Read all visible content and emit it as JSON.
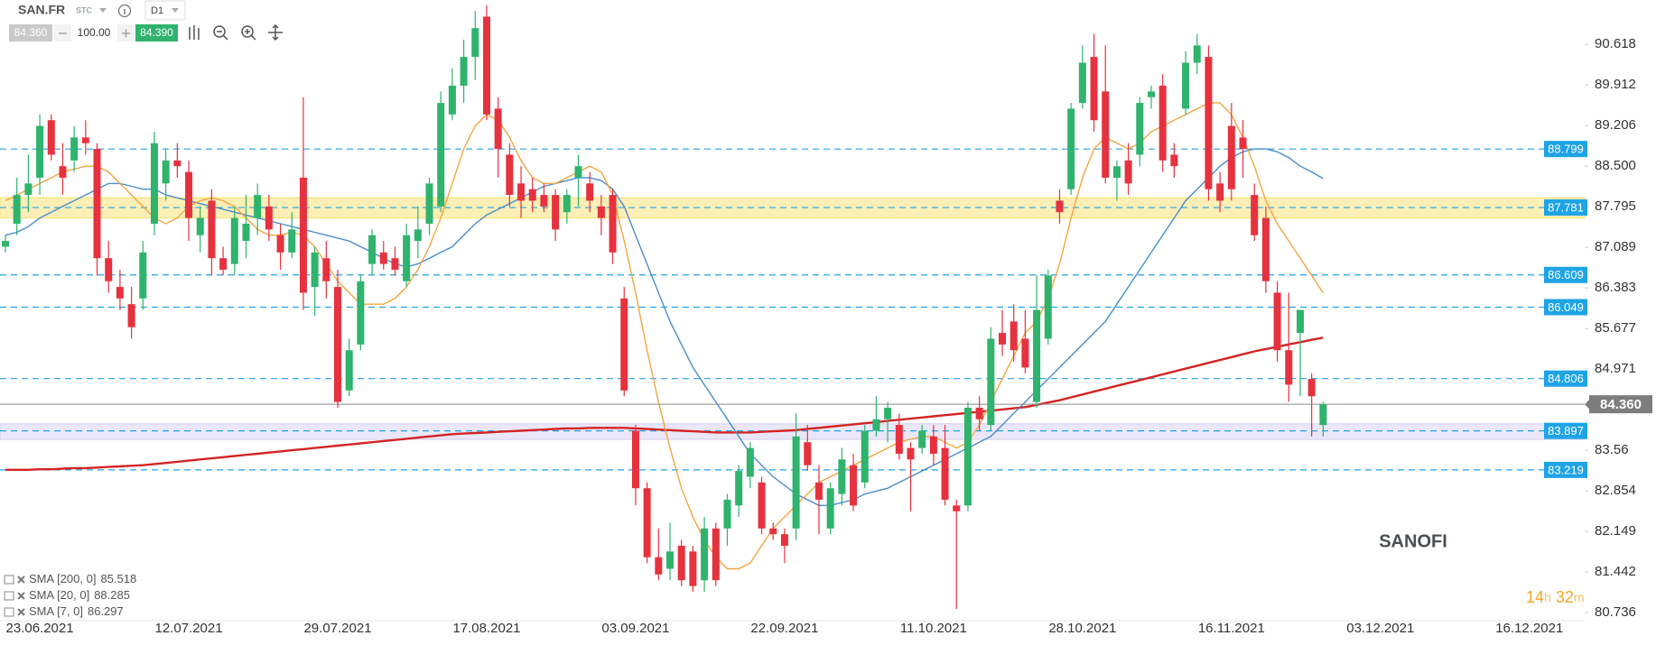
{
  "toolbar": {
    "symbol": "SAN.FR",
    "market": "STC",
    "timeframe": "D1",
    "bid": "84.360",
    "quantity": "100.00",
    "ask": "84.390"
  },
  "countdown": [
    "14",
    "h",
    "32",
    "m"
  ],
  "chart_data": {
    "type": "candlestick",
    "title": "SANOFI",
    "up_color": "#2fb36d",
    "down_color": "#e6323e",
    "ylim": [
      80.66,
      91.39
    ],
    "yticks": [
      90.618,
      89.912,
      89.206,
      {
        "value": 88.5,
        "label": "88.500"
      },
      87.795,
      87.089,
      86.383,
      85.677,
      84.971,
      83.56,
      82.854,
      82.149,
      81.442,
      80.736
    ],
    "categories": [
      null,
      null,
      null,
      "23.06.2021",
      null,
      null,
      null,
      null,
      null,
      null,
      null,
      null,
      null,
      null,
      null,
      null,
      "12.07.2021",
      null,
      null,
      null,
      null,
      null,
      null,
      null,
      null,
      null,
      null,
      null,
      null,
      "29.07.2021",
      null,
      null,
      null,
      null,
      null,
      null,
      null,
      null,
      null,
      null,
      null,
      null,
      "17.08.2021",
      null,
      null,
      null,
      null,
      null,
      null,
      null,
      null,
      null,
      null,
      null,
      null,
      "03.09.2021",
      null,
      null,
      null,
      null,
      null,
      null,
      null,
      null,
      null,
      null,
      null,
      null,
      "22.09.2021",
      null,
      null,
      null,
      null,
      null,
      null,
      null,
      null,
      null,
      null,
      null,
      null,
      "11.10.2021",
      null,
      null,
      null,
      null,
      null,
      null,
      null,
      null,
      null,
      null,
      null,
      null,
      "28.10.2021",
      null,
      null,
      null,
      null,
      null,
      null,
      null,
      null,
      null,
      null,
      null,
      null,
      "16.11.2021",
      null,
      null,
      null,
      null,
      null,
      null,
      null,
      null,
      null,
      null,
      null,
      null,
      "03.12.2021",
      null,
      null,
      null,
      null,
      null,
      null,
      null,
      null,
      null,
      null,
      null,
      null,
      "16.12.2021",
      null,
      null,
      null,
      null
    ],
    "candles": [
      [
        87.1,
        87.3,
        87.0,
        87.2
      ],
      [
        87.5,
        88.3,
        87.3,
        88.0
      ],
      [
        88.0,
        88.7,
        87.7,
        88.2
      ],
      [
        88.3,
        89.4,
        88.0,
        89.2
      ],
      [
        89.3,
        89.4,
        88.6,
        88.7
      ],
      [
        88.5,
        88.9,
        88.0,
        88.3
      ],
      [
        88.6,
        89.2,
        88.4,
        89.0
      ],
      [
        89.0,
        89.3,
        88.7,
        88.9
      ],
      [
        88.8,
        88.9,
        86.6,
        86.9
      ],
      [
        86.9,
        87.2,
        86.3,
        86.5
      ],
      [
        86.4,
        86.7,
        86.0,
        86.2
      ],
      [
        86.1,
        86.4,
        85.5,
        85.7
      ],
      [
        86.2,
        87.2,
        86.0,
        87.0
      ],
      [
        87.5,
        89.1,
        87.3,
        88.9
      ],
      [
        88.2,
        88.8,
        87.9,
        88.6
      ],
      [
        88.6,
        88.9,
        88.3,
        88.5
      ],
      [
        88.4,
        88.6,
        87.2,
        87.6
      ],
      [
        87.3,
        87.8,
        87.0,
        87.6
      ],
      [
        87.9,
        88.1,
        86.6,
        86.9
      ],
      [
        86.9,
        87.1,
        86.6,
        86.7
      ],
      [
        86.8,
        87.8,
        86.6,
        87.6
      ],
      [
        87.2,
        88.0,
        86.9,
        87.5
      ],
      [
        87.6,
        88.2,
        87.3,
        88.0
      ],
      [
        87.8,
        88.0,
        87.2,
        87.4
      ],
      [
        87.3,
        87.5,
        86.7,
        87.0
      ],
      [
        87.0,
        87.7,
        86.9,
        87.4
      ],
      [
        88.3,
        89.7,
        86.0,
        86.3
      ],
      [
        86.4,
        87.1,
        85.9,
        87.0
      ],
      [
        86.9,
        87.2,
        86.2,
        86.5
      ],
      [
        86.4,
        86.7,
        84.3,
        84.4
      ],
      [
        84.6,
        85.5,
        84.5,
        85.3
      ],
      [
        85.4,
        86.6,
        85.3,
        86.5
      ],
      [
        86.8,
        87.4,
        86.6,
        87.3
      ],
      [
        87.0,
        87.2,
        86.7,
        86.8
      ],
      [
        86.9,
        87.1,
        86.6,
        86.7
      ],
      [
        86.5,
        87.5,
        86.4,
        87.3
      ],
      [
        87.2,
        87.8,
        86.9,
        87.4
      ],
      [
        87.5,
        88.3,
        87.3,
        88.2
      ],
      [
        87.8,
        89.8,
        87.7,
        89.6
      ],
      [
        89.4,
        90.2,
        89.3,
        89.9
      ],
      [
        89.9,
        90.7,
        89.6,
        90.4
      ],
      [
        90.4,
        91.2,
        90.0,
        90.9
      ],
      [
        91.1,
        91.3,
        89.3,
        89.4
      ],
      [
        89.5,
        89.7,
        88.3,
        88.8
      ],
      [
        88.7,
        88.9,
        87.8,
        88.0
      ],
      [
        88.2,
        88.5,
        87.6,
        87.9
      ],
      [
        88.1,
        88.3,
        87.7,
        87.9
      ],
      [
        88.0,
        88.2,
        87.7,
        87.8
      ],
      [
        88.0,
        88.1,
        87.2,
        87.4
      ],
      [
        87.7,
        88.1,
        87.5,
        88.0
      ],
      [
        88.3,
        88.7,
        87.8,
        88.5
      ],
      [
        88.2,
        88.4,
        87.7,
        87.9
      ],
      [
        87.8,
        88.0,
        87.3,
        87.6
      ],
      [
        88.0,
        88.1,
        86.8,
        87.0
      ],
      [
        86.2,
        86.4,
        84.5,
        84.6
      ],
      [
        83.9,
        84.0,
        82.6,
        82.9
      ],
      [
        82.9,
        83.0,
        81.6,
        81.7
      ],
      [
        81.7,
        82.2,
        81.3,
        81.4
      ],
      [
        81.5,
        82.3,
        81.3,
        81.8
      ],
      [
        81.9,
        82.0,
        81.2,
        81.3
      ],
      [
        81.8,
        81.9,
        81.1,
        81.2
      ],
      [
        81.3,
        82.4,
        81.1,
        82.2
      ],
      [
        82.2,
        82.3,
        81.2,
        81.3
      ],
      [
        82.2,
        82.8,
        81.9,
        82.7
      ],
      [
        82.6,
        83.3,
        82.4,
        83.2
      ],
      [
        83.1,
        83.7,
        82.9,
        83.6
      ],
      [
        83.0,
        83.1,
        82.1,
        82.2
      ],
      [
        82.2,
        82.3,
        82.0,
        82.1
      ],
      [
        82.1,
        82.2,
        81.6,
        81.9
      ],
      [
        82.2,
        84.2,
        82.0,
        83.8
      ],
      [
        83.7,
        84.0,
        83.2,
        83.3
      ],
      [
        83.0,
        83.3,
        82.1,
        82.7
      ],
      [
        82.2,
        83.0,
        82.1,
        82.9
      ],
      [
        82.8,
        83.6,
        82.6,
        83.4
      ],
      [
        83.3,
        83.5,
        82.5,
        82.6
      ],
      [
        83.0,
        84.0,
        82.9,
        83.9
      ],
      [
        83.9,
        84.5,
        83.8,
        84.1
      ],
      [
        84.1,
        84.4,
        83.7,
        84.3
      ],
      [
        84.0,
        84.2,
        83.4,
        83.5
      ],
      [
        83.6,
        83.7,
        82.5,
        83.4
      ],
      [
        83.6,
        84.0,
        83.5,
        83.9
      ],
      [
        83.8,
        84.0,
        83.3,
        83.5
      ],
      [
        83.6,
        84.0,
        82.6,
        82.7
      ],
      [
        82.6,
        82.7,
        80.8,
        82.5
      ],
      [
        82.6,
        84.4,
        82.5,
        84.3
      ],
      [
        84.3,
        84.5,
        83.9,
        84.1
      ],
      [
        84.0,
        85.7,
        83.9,
        85.5
      ],
      [
        85.6,
        86.0,
        85.2,
        85.4
      ],
      [
        85.8,
        86.1,
        85.1,
        85.3
      ],
      [
        85.5,
        86.0,
        84.9,
        85.0
      ],
      [
        84.4,
        86.6,
        84.3,
        86.0
      ],
      [
        85.5,
        86.7,
        85.4,
        86.6
      ],
      [
        87.9,
        88.1,
        87.5,
        87.7
      ],
      [
        88.1,
        89.6,
        88.0,
        89.5
      ],
      [
        89.6,
        90.6,
        89.5,
        90.3
      ],
      [
        90.4,
        90.8,
        89.1,
        89.3
      ],
      [
        89.8,
        90.6,
        88.2,
        88.3
      ],
      [
        88.3,
        88.6,
        87.9,
        88.5
      ],
      [
        88.6,
        88.9,
        88.0,
        88.2
      ],
      [
        88.7,
        89.7,
        88.5,
        89.6
      ],
      [
        89.7,
        89.9,
        89.5,
        89.8
      ],
      [
        89.9,
        90.1,
        88.4,
        88.6
      ],
      [
        88.7,
        88.9,
        88.3,
        88.5
      ],
      [
        89.5,
        90.5,
        89.4,
        90.3
      ],
      [
        90.3,
        90.8,
        90.1,
        90.6
      ],
      [
        90.4,
        90.6,
        87.9,
        88.1
      ],
      [
        88.2,
        88.4,
        87.7,
        87.9
      ],
      [
        89.2,
        89.6,
        87.9,
        88.1
      ],
      [
        89.0,
        89.3,
        88.3,
        88.8
      ],
      [
        88.0,
        88.2,
        87.2,
        87.3
      ],
      [
        87.6,
        87.8,
        86.3,
        86.5
      ],
      [
        86.3,
        86.5,
        85.1,
        85.3
      ],
      [
        85.3,
        86.3,
        84.4,
        84.7
      ],
      [
        85.6,
        86.0,
        84.5,
        86.0
      ],
      [
        84.8,
        84.9,
        83.8,
        84.5
      ],
      [
        84.0,
        84.4,
        83.8,
        84.36
      ],
      null,
      null,
      null,
      null,
      null,
      null,
      null,
      null,
      null,
      null,
      null,
      null,
      null,
      null,
      null,
      null,
      null,
      null,
      null,
      null,
      null,
      null
    ],
    "series": [
      {
        "name": "SMA [200, 0]",
        "color": "#d42424",
        "values": [
          83.22,
          83.22,
          83.22,
          83.23,
          83.23,
          83.24,
          83.25,
          83.25,
          83.26,
          83.27,
          83.28,
          83.29,
          83.3,
          83.32,
          83.34,
          83.36,
          83.38,
          83.4,
          83.42,
          83.44,
          83.46,
          83.48,
          83.5,
          83.52,
          83.54,
          83.56,
          83.58,
          83.6,
          83.62,
          83.64,
          83.66,
          83.68,
          83.7,
          83.72,
          83.74,
          83.76,
          83.78,
          83.8,
          83.82,
          83.84,
          83.85,
          83.86,
          83.87,
          83.88,
          83.89,
          83.9,
          83.91,
          83.92,
          83.93,
          83.94,
          83.94,
          83.95,
          83.95,
          83.95,
          83.95,
          83.94,
          83.93,
          83.92,
          83.91,
          83.9,
          83.89,
          83.88,
          83.87,
          83.87,
          83.87,
          83.87,
          83.88,
          83.89,
          83.9,
          83.91,
          83.93,
          83.95,
          83.97,
          83.99,
          84.01,
          84.03,
          84.05,
          84.07,
          84.09,
          84.11,
          84.13,
          84.15,
          84.17,
          84.19,
          84.21,
          84.23,
          84.25,
          84.27,
          84.29,
          84.31,
          84.35,
          84.39,
          84.43,
          84.48,
          84.53,
          84.58,
          84.63,
          84.68,
          84.73,
          84.78,
          84.83,
          84.88,
          84.93,
          84.98,
          85.03,
          85.08,
          85.13,
          85.18,
          85.23,
          85.28,
          85.32,
          85.36,
          85.4,
          85.44,
          85.48,
          85.518,
          null,
          null,
          null,
          null,
          null,
          null,
          null,
          null,
          null,
          null,
          null,
          null,
          null,
          null,
          null,
          null,
          null,
          null,
          null,
          null,
          null,
          null
        ]
      },
      {
        "name": "SMA [20, 0]",
        "color": "#4a8ecb",
        "values": [
          87.3,
          87.35,
          87.45,
          87.6,
          87.7,
          87.8,
          87.9,
          88.0,
          88.1,
          88.2,
          88.2,
          88.15,
          88.1,
          88.1,
          88.0,
          87.95,
          87.9,
          87.85,
          87.8,
          87.75,
          87.7,
          87.65,
          87.6,
          87.55,
          87.5,
          87.45,
          87.4,
          87.35,
          87.3,
          87.25,
          87.2,
          87.1,
          87.0,
          86.9,
          86.8,
          86.75,
          86.8,
          86.9,
          87.0,
          87.1,
          87.3,
          87.5,
          87.65,
          87.75,
          87.85,
          87.95,
          88.05,
          88.15,
          88.2,
          88.25,
          88.3,
          88.3,
          88.25,
          88.1,
          87.8,
          87.3,
          86.8,
          86.3,
          85.8,
          85.4,
          85.0,
          84.7,
          84.4,
          84.1,
          83.8,
          83.5,
          83.3,
          83.1,
          82.95,
          82.8,
          82.7,
          82.6,
          82.6,
          82.65,
          82.7,
          82.8,
          82.85,
          82.9,
          83.0,
          83.1,
          83.2,
          83.3,
          83.4,
          83.5,
          83.6,
          83.7,
          83.8,
          84.0,
          84.2,
          84.4,
          84.6,
          84.8,
          85.0,
          85.2,
          85.4,
          85.6,
          85.8,
          86.1,
          86.4,
          86.7,
          87.0,
          87.3,
          87.6,
          87.9,
          88.1,
          88.3,
          88.5,
          88.65,
          88.75,
          88.8,
          88.8,
          88.75,
          88.65,
          88.5,
          88.4,
          88.285,
          null,
          null,
          null,
          null,
          null,
          null,
          null,
          null,
          null,
          null,
          null,
          null,
          null,
          null,
          null,
          null,
          null,
          null,
          null,
          null,
          null,
          null
        ]
      },
      {
        "name": "SMA [7, 0]",
        "color": "#f5a540",
        "values": [
          87.9,
          88.0,
          88.1,
          88.2,
          88.3,
          88.4,
          88.45,
          88.5,
          88.5,
          88.4,
          88.2,
          88.0,
          87.8,
          87.6,
          87.5,
          87.6,
          87.8,
          87.9,
          87.95,
          87.9,
          87.8,
          87.6,
          87.4,
          87.3,
          87.3,
          87.35,
          87.3,
          87.1,
          86.8,
          86.5,
          86.3,
          86.1,
          86.1,
          86.1,
          86.2,
          86.4,
          86.7,
          87.1,
          87.6,
          88.2,
          88.8,
          89.2,
          89.4,
          89.3,
          89.0,
          88.6,
          88.3,
          88.2,
          88.2,
          88.3,
          88.4,
          88.5,
          88.4,
          88.0,
          87.2,
          86.3,
          85.3,
          84.4,
          83.6,
          82.9,
          82.4,
          82.0,
          81.7,
          81.5,
          81.5,
          81.6,
          81.9,
          82.2,
          82.4,
          82.6,
          82.8,
          83.0,
          83.1,
          83.2,
          83.3,
          83.4,
          83.5,
          83.6,
          83.7,
          83.75,
          83.8,
          83.8,
          83.7,
          83.6,
          83.7,
          84.0,
          84.4,
          84.8,
          85.2,
          85.6,
          85.8,
          86.2,
          86.8,
          87.6,
          88.3,
          88.8,
          89.0,
          88.9,
          88.8,
          88.9,
          89.1,
          89.2,
          89.3,
          89.4,
          89.5,
          89.6,
          89.6,
          89.4,
          89.0,
          88.5,
          87.9,
          87.5,
          87.2,
          86.9,
          86.6,
          86.297,
          null,
          null,
          null,
          null,
          null,
          null,
          null,
          null,
          null,
          null,
          null,
          null,
          null,
          null,
          null,
          null,
          null,
          null,
          null,
          null,
          null,
          null
        ]
      }
    ],
    "levels": [
      88.799,
      87.781,
      86.609,
      86.049,
      84.806,
      83.897,
      83.219
    ],
    "level_color": "#1ea4e6",
    "zones": [
      {
        "from": 87.6,
        "to": 87.95,
        "color": "#f7e27a"
      },
      {
        "from": 83.75,
        "to": 84.02,
        "color": "#d9d3f2"
      }
    ],
    "last_price": {
      "value": 84.36,
      "label": "84.360"
    }
  }
}
